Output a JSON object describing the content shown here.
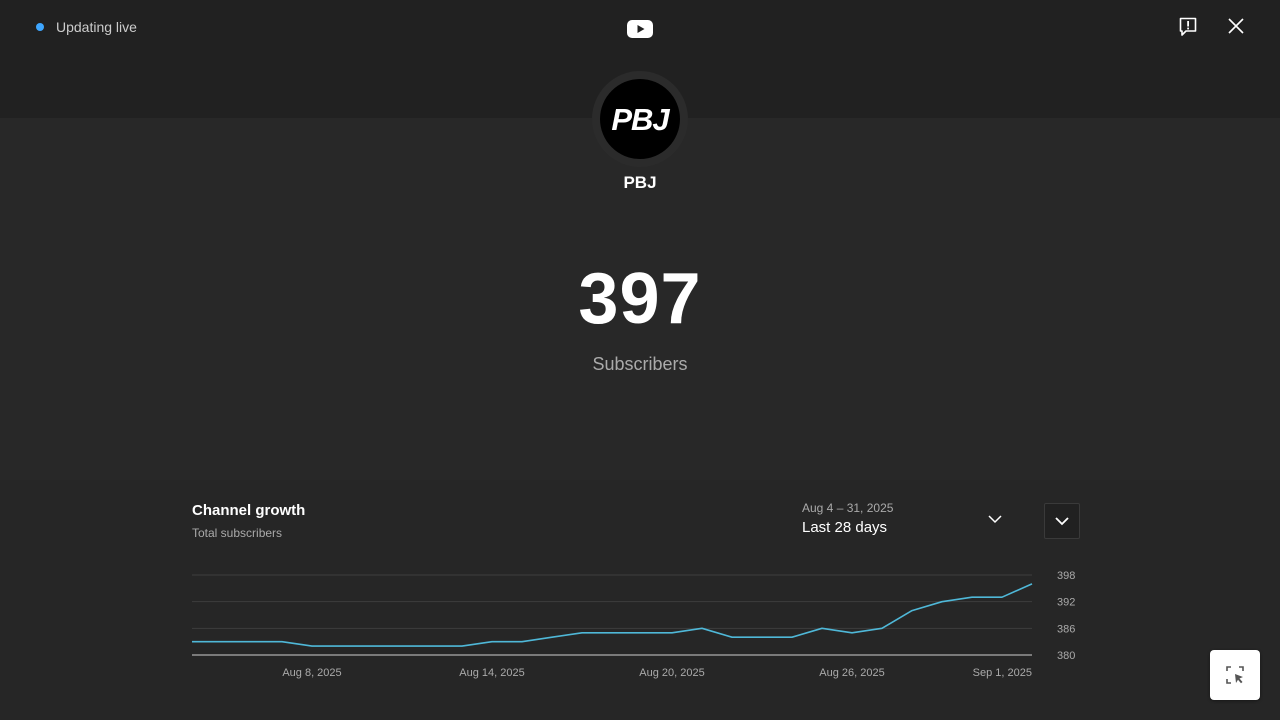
{
  "header": {
    "live_status": "Updating live",
    "icons": {
      "logo": "youtube-icon",
      "report": "report-flag-icon",
      "close": "close-icon"
    }
  },
  "channel": {
    "avatar_text": "PBJ",
    "name": "PBJ",
    "subscriber_count": "397",
    "subscriber_label": "Subscribers"
  },
  "growth": {
    "title": "Channel growth",
    "subtitle": "Total subscribers",
    "date_range": "Aug 4 – 31, 2025",
    "range_label": "Last 28 days",
    "icons": {
      "dropdown": "chevron-down-icon",
      "collapse": "chevron-down-icon"
    }
  },
  "fab": {
    "icon": "select-area-icon"
  },
  "colors": {
    "accent": "#3ea6ff",
    "line": "#4fb8d8",
    "background": "#282828"
  },
  "chart_data": {
    "type": "line",
    "title": "Channel growth",
    "subtitle": "Total subscribers",
    "x": [
      "Aug 4",
      "Aug 5",
      "Aug 6",
      "Aug 7",
      "Aug 8",
      "Aug 9",
      "Aug 10",
      "Aug 11",
      "Aug 12",
      "Aug 13",
      "Aug 14",
      "Aug 15",
      "Aug 16",
      "Aug 17",
      "Aug 18",
      "Aug 19",
      "Aug 20",
      "Aug 21",
      "Aug 22",
      "Aug 23",
      "Aug 24",
      "Aug 25",
      "Aug 26",
      "Aug 27",
      "Aug 28",
      "Aug 29",
      "Aug 30",
      "Aug 31",
      "Sep 1"
    ],
    "series": [
      {
        "values": [
          383,
          383,
          383,
          383,
          382,
          382,
          382,
          382,
          382,
          382,
          383,
          383,
          384,
          385,
          385,
          385,
          385,
          386,
          384,
          384,
          384,
          386,
          385,
          386,
          390,
          392,
          393,
          393,
          396
        ]
      }
    ],
    "x_tick_labels": [
      "Aug 8, 2025",
      "Aug 14, 2025",
      "Aug 20, 2025",
      "Aug 26, 2025",
      "Sep 1, 2025"
    ],
    "y_tick_labels": [
      "398",
      "392",
      "386",
      "380"
    ],
    "ylim": [
      380,
      398
    ],
    "grid": true
  }
}
